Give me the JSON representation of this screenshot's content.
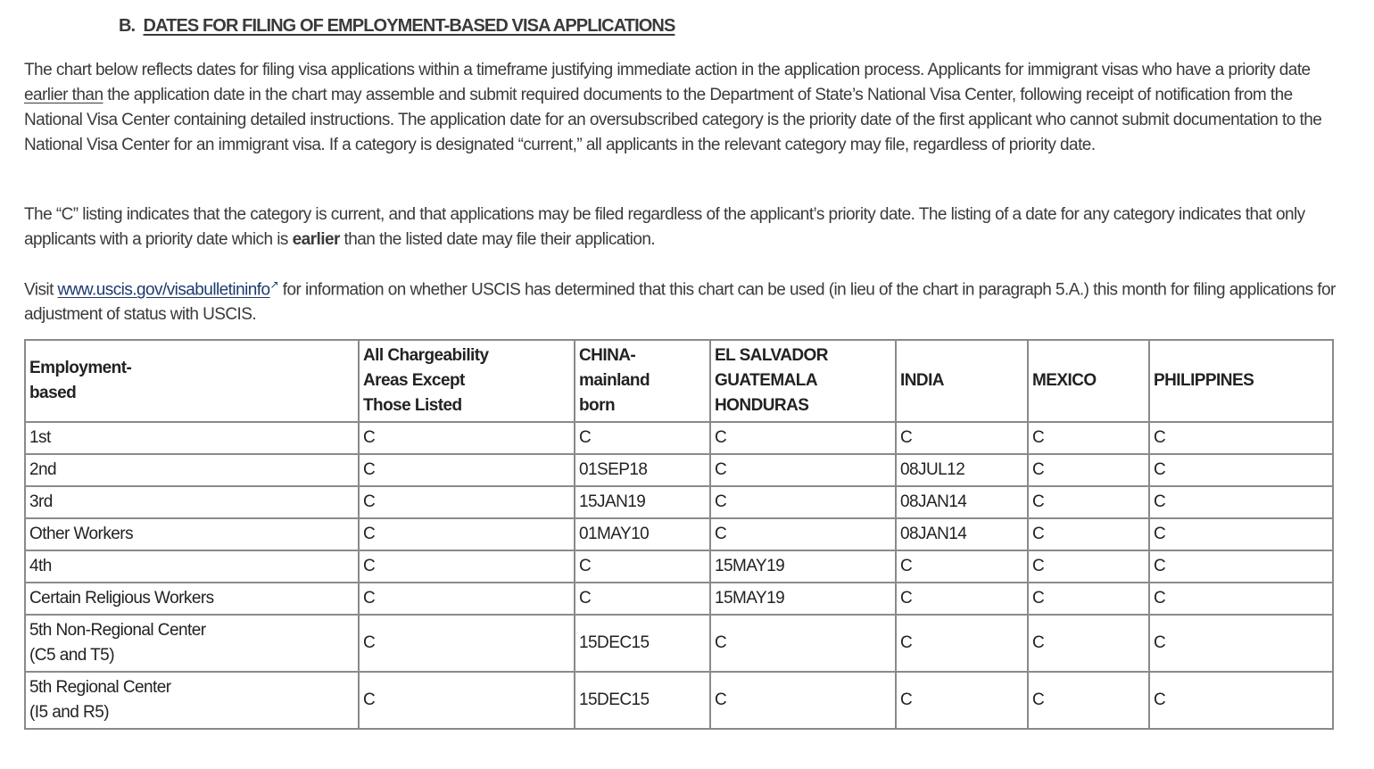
{
  "section": {
    "letter": "B.",
    "title": "DATES FOR FILING OF EMPLOYMENT-BASED VISA APPLICATIONS"
  },
  "para1": {
    "a": "The chart below reflects dates for filing visa applications within a timeframe justifying immediate action in the application process. Applicants for immigrant visas who have a priority date ",
    "u": "earlier than",
    "b": " the application date in the chart may assemble and submit required documents to the Department of State’s National Visa Center, following receipt of notification from the National Visa Center containing detailed instructions. The application date for an oversubscribed category is the priority date of the first applicant who cannot submit documentation to the National Visa Center for an immigrant visa. If a category is designated “current,” all applicants in the relevant category may file, regardless of priority date."
  },
  "para2": {
    "a": "The “C” listing indicates that the category is current, and that applications may be filed regardless of the applicant’s priority date. The listing of a date for any category indicates that only applicants with a priority date which is ",
    "b": "earlier",
    "c": " than the listed date may file their application."
  },
  "para3": {
    "a": "Visit ",
    "link": "www.uscis.gov/visabulletininfo",
    "ext_icon": "external-link-icon",
    "b": " for information on whether USCIS has determined that this chart can be used (in lieu of the chart in paragraph 5.A.) this month for filing applications for adjustment of status with USCIS."
  },
  "table": {
    "headers": [
      [
        "Employment-",
        "based"
      ],
      [
        "All Chargeability",
        "Areas Except",
        "Those Listed"
      ],
      [
        "CHINA-",
        "mainland",
        "born"
      ],
      [
        "EL SALVADOR",
        "GUATEMALA",
        "HONDURAS"
      ],
      [
        "INDIA"
      ],
      [
        "MEXICO"
      ],
      [
        "PHILIPPINES"
      ]
    ],
    "rows": [
      [
        [
          "1st"
        ],
        "C",
        "C",
        "C",
        "C",
        "C",
        "C"
      ],
      [
        [
          "2nd"
        ],
        "C",
        "01SEP18",
        "C",
        "08JUL12",
        "C",
        "C"
      ],
      [
        [
          "3rd"
        ],
        "C",
        "15JAN19",
        "C",
        "08JAN14",
        "C",
        "C"
      ],
      [
        [
          "Other Workers"
        ],
        "C",
        "01MAY10",
        "C",
        "08JAN14",
        "C",
        "C"
      ],
      [
        [
          "4th"
        ],
        "C",
        "C",
        "15MAY19",
        "C",
        "C",
        "C"
      ],
      [
        [
          "Certain Religious Workers"
        ],
        "C",
        "C",
        "15MAY19",
        "C",
        "C",
        "C"
      ],
      [
        [
          "5th Non-Regional Center",
          "(C5 and T5)"
        ],
        "C",
        "15DEC15",
        "C",
        "C",
        "C",
        "C"
      ],
      [
        [
          "5th Regional Center",
          "(I5 and R5)"
        ],
        "C",
        "15DEC15",
        "C",
        "C",
        "C",
        "C"
      ]
    ]
  }
}
